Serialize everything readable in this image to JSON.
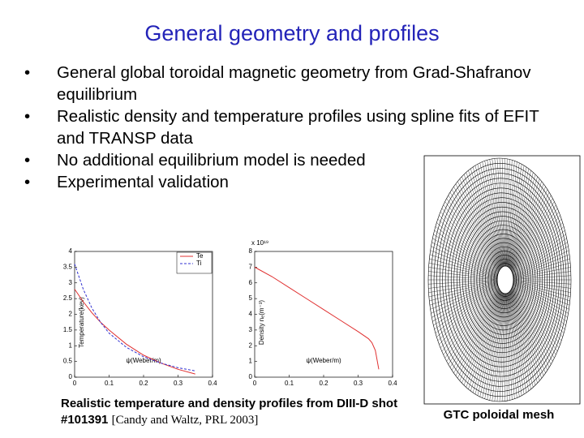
{
  "title": "General geometry and profiles",
  "bullets": [
    "General global toroidal magnetic geometry from Grad-Shafranov equilibrium",
    "Realistic density and temperature profiles using spline fits of EFIT and TRANSP data",
    "No additional equilibrium model is needed",
    "Experimental validation"
  ],
  "charts": [
    {
      "type": "line",
      "ylabel": "Temperature(kev)",
      "xlabel": "ψ(Weber/m)",
      "x": [
        0,
        0.025,
        0.05,
        0.075,
        0.1,
        0.15,
        0.2,
        0.25,
        0.3,
        0.35
      ],
      "series": [
        {
          "name": "Te",
          "color": "#e03030",
          "values": [
            2.8,
            2.4,
            2.05,
            1.75,
            1.5,
            1.05,
            0.7,
            0.45,
            0.25,
            0.1
          ]
        },
        {
          "name": "Ti",
          "color": "#3030d0",
          "values": [
            3.6,
            2.8,
            2.2,
            1.75,
            1.4,
            0.95,
            0.65,
            0.45,
            0.3,
            0.2
          ]
        }
      ],
      "xlim": [
        0,
        0.4
      ],
      "xticks": [
        0,
        0.1,
        0.2,
        0.3,
        0.4
      ],
      "ylim": [
        0,
        4
      ],
      "yticks": [
        0,
        0.5,
        1,
        1.5,
        2,
        2.5,
        3,
        3.5,
        4
      ],
      "legend": "upper right"
    },
    {
      "type": "line",
      "ylabel": "Density nₑ(m⁻³)",
      "xlabel": "ψ(Weber/m)",
      "y_multiplier": "x 10¹⁹",
      "x": [
        0,
        0.05,
        0.1,
        0.15,
        0.2,
        0.25,
        0.3,
        0.33,
        0.34,
        0.35,
        0.36
      ],
      "series": [
        {
          "color": "#e03030",
          "values": [
            7,
            6.4,
            5.7,
            5.0,
            4.3,
            3.6,
            2.9,
            2.45,
            2.2,
            1.7,
            0.5
          ]
        }
      ],
      "xlim": [
        0,
        0.4
      ],
      "xticks": [
        0,
        0.1,
        0.2,
        0.3,
        0.4
      ],
      "ylim": [
        0,
        8
      ],
      "yticks": [
        0,
        1,
        2,
        3,
        4,
        5,
        6,
        7,
        8
      ]
    }
  ],
  "caption": "Realistic temperature and density profiles from DIII-D shot #101391",
  "caption_ref": "[Candy and Waltz, PRL 2003]",
  "mesh_caption": "GTC poloidal mesh"
}
